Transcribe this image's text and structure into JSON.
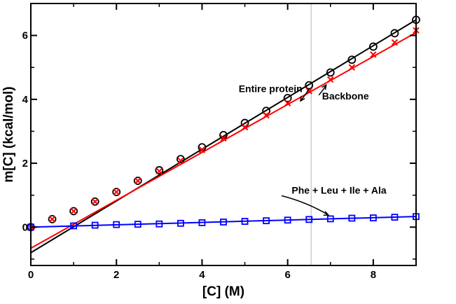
{
  "chart_data": {
    "type": "scatter",
    "title": "",
    "xlabel": "[C] (M)",
    "ylabel": "m[C] (kcal/mol)",
    "xlim": [
      0,
      9
    ],
    "ylim": [
      -1.2,
      7
    ],
    "xticks": [
      0,
      2,
      4,
      6,
      8
    ],
    "yticks": [
      0,
      2,
      4,
      6
    ],
    "ref_line_x": 6.55,
    "series": [
      {
        "name": "Entire protein",
        "marker": "circle",
        "color": "#000000",
        "x": [
          0,
          0.5,
          1,
          1.5,
          2,
          2.5,
          3,
          3.5,
          4,
          4.5,
          5,
          5.5,
          6,
          6.5,
          7,
          7.5,
          8,
          8.5,
          9
        ],
        "y": [
          0,
          0.25,
          0.5,
          0.8,
          1.1,
          1.45,
          1.78,
          2.13,
          2.5,
          2.88,
          3.26,
          3.64,
          4.04,
          4.44,
          4.84,
          5.24,
          5.65,
          6.07,
          6.49
        ],
        "fit": {
          "slope": 0.81,
          "intercept": -0.8,
          "color": "#000000"
        }
      },
      {
        "name": "Backbone",
        "marker": "x",
        "color": "#ff0000",
        "x": [
          0,
          0.5,
          1,
          1.5,
          2,
          2.5,
          3,
          3.5,
          4,
          4.5,
          5,
          5.5,
          6,
          6.5,
          7,
          7.5,
          8,
          8.5,
          9
        ],
        "y": [
          0,
          0.25,
          0.5,
          0.8,
          1.1,
          1.45,
          1.75,
          2.08,
          2.42,
          2.78,
          3.13,
          3.5,
          3.88,
          4.26,
          4.62,
          5.0,
          5.4,
          5.78,
          6.16
        ],
        "fit": {
          "slope": 0.75,
          "intercept": -0.66,
          "color": "#ff0000"
        }
      },
      {
        "name": "Phe + Leu + Ile + Ala",
        "marker": "square",
        "color": "#0000ff",
        "x": [
          0,
          1,
          1.5,
          2,
          2.5,
          3,
          3.5,
          4,
          4.5,
          5,
          5.5,
          6,
          6.5,
          7,
          7.5,
          8,
          8.5,
          9
        ],
        "y": [
          0,
          0.04,
          0.06,
          0.08,
          0.09,
          0.1,
          0.12,
          0.14,
          0.16,
          0.18,
          0.2,
          0.22,
          0.24,
          0.26,
          0.28,
          0.29,
          0.31,
          0.33
        ],
        "fit": {
          "slope": 0.037,
          "intercept": 0.0,
          "color": "#0000ff"
        }
      }
    ],
    "annotations": [
      {
        "text": "Entire protein",
        "x": 5.6,
        "y": 4.23,
        "arrow_to": [
          6.3,
          3.95
        ]
      },
      {
        "text": "Backbone",
        "x": 7.35,
        "y": 4.0,
        "arrow_to": [
          6.9,
          4.45
        ]
      },
      {
        "text": "Phe + Leu + Ile + Ala",
        "x": 7.2,
        "y": 1.05,
        "arrow_to": [
          6.95,
          0.38
        ]
      }
    ]
  }
}
